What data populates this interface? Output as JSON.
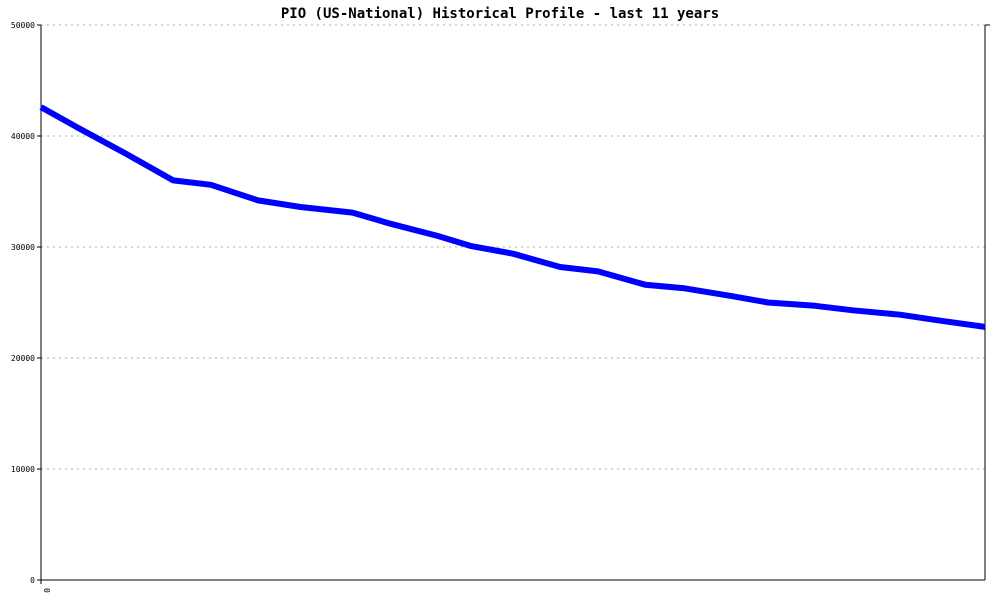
{
  "chart_data": {
    "type": "line",
    "title": "PIO (US-National) Historical Profile - last 11 years",
    "xlabel": "",
    "ylabel": "",
    "ylim": [
      0,
      50000
    ],
    "yticks": [
      0,
      10000,
      20000,
      30000,
      40000,
      50000
    ],
    "ytick_labels": [
      "0",
      "10000",
      "20000",
      "30000",
      "40000",
      "50000"
    ],
    "xticks": [
      0
    ],
    "xtick_labels": [
      "0"
    ],
    "xlim": [
      0,
      1
    ],
    "grid": true,
    "legend": "none",
    "series": [
      {
        "color": "#0000ff",
        "x": [
          0,
          0.04,
          0.09,
          0.14,
          0.18,
          0.23,
          0.275,
          0.33,
          0.37,
          0.42,
          0.455,
          0.5,
          0.55,
          0.59,
          0.64,
          0.68,
          0.73,
          0.77,
          0.82,
          0.86,
          0.91,
          0.95,
          1.0
        ],
        "values": [
          42600,
          40700,
          38400,
          36000,
          35600,
          34200,
          33600,
          33100,
          32100,
          31000,
          30100,
          29400,
          28200,
          27800,
          26600,
          26300,
          25600,
          25000,
          24700,
          24300,
          23900,
          23400,
          22800
        ]
      }
    ]
  },
  "colors": {
    "line": "#0000ff",
    "grid": "#aaaaaa",
    "axis": "#000000"
  }
}
